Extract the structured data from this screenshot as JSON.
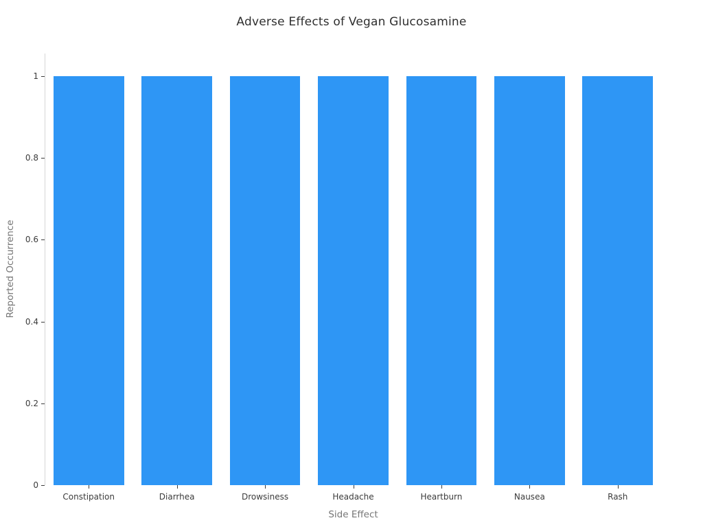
{
  "chart_data": {
    "type": "bar",
    "title": "Adverse Effects of Vegan Glucosamine",
    "xlabel": "Side Effect",
    "ylabel": "Reported Occurrence",
    "categories": [
      "Constipation",
      "Diarrhea",
      "Drowsiness",
      "Headache",
      "Heartburn",
      "Nausea",
      "Rash"
    ],
    "values": [
      1,
      1,
      1,
      1,
      1,
      1,
      1
    ],
    "ytick_labels": [
      "0",
      "0.2",
      "0.4",
      "0.6",
      "0.8",
      "1"
    ],
    "yticks": [
      0,
      0.2,
      0.4,
      0.6,
      0.8,
      1
    ],
    "ylim": [
      0,
      1.055
    ],
    "bar_color": "#2e96f5",
    "grid": false,
    "legend_position": "none",
    "background_color": "#ffffff"
  }
}
